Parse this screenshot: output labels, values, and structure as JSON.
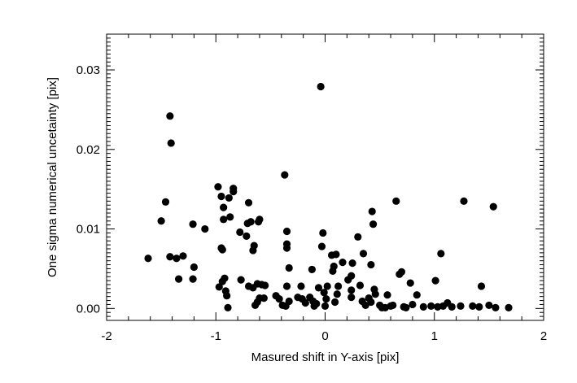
{
  "chart_data": {
    "type": "scatter",
    "title": "",
    "xlabel": "Masured shift in Y-axis [pix]",
    "ylabel": "One sigma numerical uncetainty [pix]",
    "xlim": [
      -2,
      2
    ],
    "ylim": [
      -0.0015,
      0.0345
    ],
    "x_ticks": [
      -2,
      -1,
      0,
      1,
      2
    ],
    "x_tick_labels": [
      "-2",
      "-1",
      "0",
      "1",
      "2"
    ],
    "y_ticks": [
      0.0,
      0.01,
      0.02,
      0.03
    ],
    "y_tick_labels": [
      "0.00",
      "0.01",
      "0.02",
      "0.03"
    ],
    "grid": false,
    "marker": "filled-circle",
    "color": "#000000",
    "series": [
      {
        "points": [
          [
            -1.62,
            0.0063
          ],
          [
            -1.5,
            0.011
          ],
          [
            -1.46,
            0.0134
          ],
          [
            -1.42,
            0.0242
          ],
          [
            -1.41,
            0.0208
          ],
          [
            -1.42,
            0.0065
          ],
          [
            -1.36,
            0.0063
          ],
          [
            -1.3,
            0.0066
          ],
          [
            -1.34,
            0.0037
          ],
          [
            -1.21,
            0.0106
          ],
          [
            -1.2,
            0.0052
          ],
          [
            -1.21,
            0.0037
          ],
          [
            -1.1,
            0.01
          ],
          [
            -0.98,
            0.0153
          ],
          [
            -0.95,
            0.0141
          ],
          [
            -0.93,
            0.0127
          ],
          [
            -0.93,
            0.0112
          ],
          [
            -0.88,
            0.0139
          ],
          [
            -0.87,
            0.0115
          ],
          [
            -0.84,
            0.0151
          ],
          [
            -0.84,
            0.0147
          ],
          [
            -0.97,
            0.0027
          ],
          [
            -0.94,
            0.0034
          ],
          [
            -0.92,
            0.0038
          ],
          [
            -0.91,
            0.0022
          ],
          [
            -0.9,
            0.0016
          ],
          [
            -0.89,
            0.0001
          ],
          [
            -0.95,
            0.0076
          ],
          [
            -0.94,
            0.0074
          ],
          [
            -0.78,
            0.0096
          ],
          [
            -0.72,
            0.0091
          ],
          [
            -0.7,
            0.0133
          ],
          [
            -0.68,
            0.0109
          ],
          [
            -0.71,
            0.0107
          ],
          [
            -0.6,
            0.0112
          ],
          [
            -0.61,
            0.0109
          ],
          [
            -0.65,
            0.0079
          ],
          [
            -0.66,
            0.0073
          ],
          [
            -0.77,
            0.0036
          ],
          [
            -0.7,
            0.0028
          ],
          [
            -0.66,
            0.0026
          ],
          [
            -0.62,
            0.0031
          ],
          [
            -0.58,
            0.003
          ],
          [
            -0.55,
            0.0029
          ],
          [
            -0.6,
            0.0013
          ],
          [
            -0.62,
            0.0008
          ],
          [
            -0.64,
            0.0004
          ],
          [
            -0.56,
            0.0013
          ],
          [
            -0.45,
            0.0016
          ],
          [
            -0.42,
            0.0012
          ],
          [
            -0.39,
            0.0004
          ],
          [
            -0.36,
            0.0003
          ],
          [
            -0.37,
            0.0168
          ],
          [
            -0.35,
            0.0097
          ],
          [
            -0.35,
            0.0081
          ],
          [
            -0.35,
            0.0076
          ],
          [
            -0.33,
            0.0051
          ],
          [
            -0.35,
            0.0028
          ],
          [
            -0.33,
            0.0009
          ],
          [
            -0.25,
            0.0014
          ],
          [
            -0.22,
            0.0028
          ],
          [
            -0.21,
            0.0012
          ],
          [
            -0.18,
            0.0007
          ],
          [
            -0.14,
            0.0014
          ],
          [
            -0.12,
            0.0049
          ],
          [
            -0.11,
            0.0009
          ],
          [
            -0.1,
            0.0003
          ],
          [
            -0.08,
            0.0006
          ],
          [
            -0.06,
            0.0026
          ],
          [
            -0.04,
            0.0279
          ],
          [
            -0.03,
            0.0078
          ],
          [
            -0.02,
            0.0095
          ],
          [
            0.0,
            0.0003
          ],
          [
            0.01,
            0.0012
          ],
          [
            0.02,
            0.0028
          ],
          [
            -0.01,
            0.002
          ],
          [
            0.06,
            0.0067
          ],
          [
            0.08,
            0.0053
          ],
          [
            0.1,
            0.0068
          ],
          [
            0.07,
            0.0047
          ],
          [
            0.12,
            0.0028
          ],
          [
            0.11,
            0.0018
          ],
          [
            0.09,
            0.0008
          ],
          [
            0.16,
            0.0058
          ],
          [
            0.21,
            0.0036
          ],
          [
            0.24,
            0.0023
          ],
          [
            0.24,
            0.0041
          ],
          [
            0.24,
            0.0014
          ],
          [
            0.25,
            0.0057
          ],
          [
            0.3,
            0.009
          ],
          [
            0.32,
            0.0029
          ],
          [
            0.34,
            0.0009
          ],
          [
            0.35,
            0.0069
          ],
          [
            0.37,
            0.0004
          ],
          [
            0.4,
            0.0013
          ],
          [
            0.42,
            0.0008
          ],
          [
            0.42,
            0.0055
          ],
          [
            0.43,
            0.0122
          ],
          [
            0.44,
            0.0106
          ],
          [
            0.45,
            0.0024
          ],
          [
            0.46,
            0.0018
          ],
          [
            0.5,
            0.0004
          ],
          [
            0.52,
            0.0001
          ],
          [
            0.55,
            0.0001
          ],
          [
            0.57,
            0.0017
          ],
          [
            0.6,
            0.0003
          ],
          [
            0.62,
            0.0004
          ],
          [
            0.65,
            0.0135
          ],
          [
            0.68,
            0.0043
          ],
          [
            0.7,
            0.0046
          ],
          [
            0.72,
            0.0002
          ],
          [
            0.74,
            0.0001
          ],
          [
            0.78,
            0.0032
          ],
          [
            0.8,
            0.0005
          ],
          [
            0.84,
            0.0017
          ],
          [
            0.9,
            0.0002
          ],
          [
            0.97,
            0.0003
          ],
          [
            1.01,
            0.0035
          ],
          [
            1.03,
            0.0002
          ],
          [
            1.06,
            0.0069
          ],
          [
            1.08,
            0.0003
          ],
          [
            1.12,
            0.0007
          ],
          [
            1.16,
            0.0002
          ],
          [
            1.24,
            0.0003
          ],
          [
            1.27,
            0.0135
          ],
          [
            1.35,
            0.0003
          ],
          [
            1.41,
            0.0002
          ],
          [
            1.43,
            0.0028
          ],
          [
            1.5,
            0.0004
          ],
          [
            1.54,
            0.0128
          ],
          [
            1.56,
            0.0001
          ],
          [
            1.68,
            0.0001
          ]
        ]
      }
    ]
  }
}
